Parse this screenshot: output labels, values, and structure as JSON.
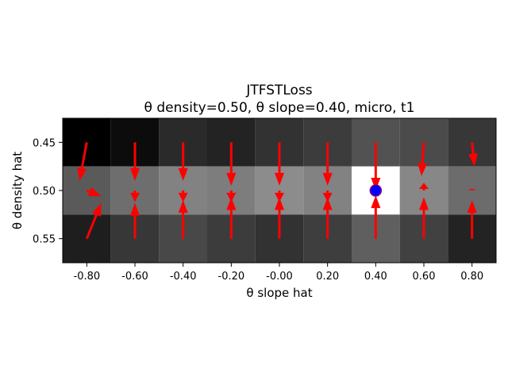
{
  "chart_data": {
    "type": "heatmap",
    "title_line1": "JTFSTLoss",
    "title_line2": "θ density=0.50, θ slope=0.40, micro, t1",
    "xlabel": "θ slope hat",
    "ylabel": "θ density hat",
    "x_ticks": [
      "-0.80",
      "-0.60",
      "-0.40",
      "-0.20",
      "-0.00",
      "0.20",
      "0.40",
      "0.60",
      "0.80"
    ],
    "y_ticks": [
      "0.45",
      "0.50",
      "0.55"
    ],
    "x_values": [
      -0.8,
      -0.6,
      -0.4,
      -0.2,
      0.0,
      0.2,
      0.4,
      0.6,
      0.8
    ],
    "y_values": [
      0.45,
      0.5,
      0.55
    ],
    "xlim": [
      -0.9,
      0.9
    ],
    "ylim": [
      0.575,
      0.425
    ],
    "cell_gray": [
      [
        0,
        12,
        42,
        35,
        50,
        60,
        82,
        75,
        55
      ],
      [
        90,
        110,
        130,
        125,
        140,
        130,
        255,
        135,
        108
      ],
      [
        30,
        55,
        72,
        60,
        50,
        62,
        95,
        65,
        35
      ]
    ],
    "arrows": [
      {
        "x": -0.8,
        "y": 0.45,
        "dx": -0.03,
        "dy": 0.04
      },
      {
        "x": -0.6,
        "y": 0.45,
        "dx": 0.0,
        "dy": 0.04
      },
      {
        "x": -0.4,
        "y": 0.45,
        "dx": 0.0,
        "dy": 0.04
      },
      {
        "x": -0.2,
        "y": 0.45,
        "dx": 0.0,
        "dy": 0.045
      },
      {
        "x": 0.0,
        "y": 0.45,
        "dx": 0.0,
        "dy": 0.045
      },
      {
        "x": 0.2,
        "y": 0.45,
        "dx": 0.0,
        "dy": 0.045
      },
      {
        "x": 0.4,
        "y": 0.45,
        "dx": 0.0,
        "dy": 0.05
      },
      {
        "x": 0.6,
        "y": 0.45,
        "dx": -0.01,
        "dy": 0.035
      },
      {
        "x": 0.8,
        "y": 0.45,
        "dx": 0.01,
        "dy": 0.025
      },
      {
        "x": -0.8,
        "y": 0.5,
        "dx": 0.06,
        "dy": 0.006
      },
      {
        "x": -0.6,
        "y": 0.5,
        "dx": 0.0,
        "dy": 0.012
      },
      {
        "x": -0.4,
        "y": 0.5,
        "dx": 0.0,
        "dy": 0.012
      },
      {
        "x": -0.2,
        "y": 0.5,
        "dx": 0.0,
        "dy": 0.012
      },
      {
        "x": 0.0,
        "y": 0.5,
        "dx": 0.0,
        "dy": 0.012
      },
      {
        "x": 0.2,
        "y": 0.5,
        "dx": 0.0,
        "dy": 0.012
      },
      {
        "x": 0.6,
        "y": 0.5,
        "dx": 0.0,
        "dy": -0.008
      },
      {
        "x": 0.8,
        "y": 0.5,
        "dx": 0.0,
        "dy": -0.002
      },
      {
        "x": -0.8,
        "y": 0.55,
        "dx": 0.06,
        "dy": -0.037
      },
      {
        "x": -0.6,
        "y": 0.55,
        "dx": 0.0,
        "dy": -0.037
      },
      {
        "x": -0.4,
        "y": 0.55,
        "dx": 0.0,
        "dy": -0.04
      },
      {
        "x": -0.2,
        "y": 0.55,
        "dx": 0.0,
        "dy": -0.043
      },
      {
        "x": 0.0,
        "y": 0.55,
        "dx": 0.0,
        "dy": -0.043
      },
      {
        "x": 0.2,
        "y": 0.55,
        "dx": 0.0,
        "dy": -0.043
      },
      {
        "x": 0.4,
        "y": 0.55,
        "dx": 0.0,
        "dy": -0.045
      },
      {
        "x": 0.6,
        "y": 0.55,
        "dx": 0.0,
        "dy": -0.043
      },
      {
        "x": 0.8,
        "y": 0.55,
        "dx": 0.0,
        "dy": -0.04
      }
    ],
    "target_point": {
      "x": 0.4,
      "y": 0.5
    },
    "colors": {
      "arrow": "#ff0000",
      "target_fill": "#0000ff",
      "target_edge": "#800080",
      "axis": "#000000"
    }
  }
}
